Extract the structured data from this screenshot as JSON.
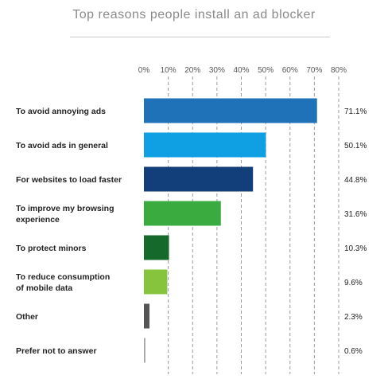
{
  "chart_data": {
    "type": "bar",
    "orientation": "horizontal",
    "title": "Top reasons people install an ad blocker",
    "categories": [
      "To avoid annoying ads",
      "To avoid ads in general",
      "For websites to load faster",
      "To improve my browsing experience",
      "To protect minors",
      "To reduce consumption of mobile data",
      "Other",
      "Prefer not to answer"
    ],
    "category_lines": [
      [
        "To avoid annoying ads"
      ],
      [
        "To avoid ads in general"
      ],
      [
        "For websites to load faster"
      ],
      [
        "To improve my browsing",
        "experience"
      ],
      [
        "To protect minors"
      ],
      [
        "To reduce consumption",
        "of mobile data"
      ],
      [
        "Other"
      ],
      [
        "Prefer not to answer"
      ]
    ],
    "values": [
      71.1,
      50.1,
      44.8,
      31.6,
      10.3,
      9.6,
      2.3,
      0.6
    ],
    "value_labels": [
      "71.1%",
      "50.1%",
      "44.8%",
      "31.6%",
      "10.3%",
      "9.6%",
      "2.3%",
      "0.6%"
    ],
    "colors": [
      "#1f72b8",
      "#0ea0e3",
      "#123f7a",
      "#3aab3f",
      "#156a2b",
      "#86c43e",
      "#555555",
      "#a5a5a5"
    ],
    "xlim": [
      0,
      80
    ],
    "xticks": [
      0,
      10,
      20,
      30,
      40,
      50,
      60,
      70,
      80
    ],
    "xtick_labels": [
      "0%",
      "10%",
      "20%",
      "30%",
      "40%",
      "50%",
      "60%",
      "70%",
      "80%"
    ],
    "grid": "vertical-dashed",
    "legend": "none"
  }
}
